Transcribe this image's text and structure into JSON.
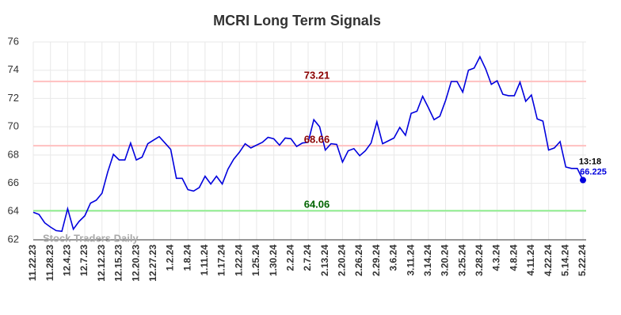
{
  "chart_data": {
    "type": "line",
    "title": "MCRI Long Term Signals",
    "categories": [
      "11.22.23",
      null,
      null,
      "11.28.23",
      null,
      null,
      "12.4.23",
      null,
      null,
      "12.7.23",
      null,
      null,
      "12.12.23",
      null,
      null,
      "12.15.23",
      null,
      null,
      "12.20.23",
      null,
      null,
      "12.27.23",
      null,
      null,
      "1.2.24",
      null,
      null,
      "1.8.24",
      null,
      null,
      "1.11.24",
      null,
      null,
      "1.17.24",
      null,
      null,
      "1.22.24",
      null,
      null,
      "1.25.24",
      null,
      null,
      "1.30.24",
      null,
      null,
      "2.2.24",
      null,
      null,
      "2.7.24",
      null,
      null,
      "2.13.24",
      null,
      null,
      "2.20.24",
      null,
      null,
      "2.26.24",
      null,
      null,
      "2.29.24",
      null,
      null,
      "3.6.24",
      null,
      null,
      "3.11.24",
      null,
      null,
      "3.14.24",
      null,
      null,
      "3.20.24",
      null,
      null,
      "3.25.24",
      null,
      null,
      "3.28.24",
      null,
      null,
      "4.3.24",
      null,
      null,
      "4.8.24",
      null,
      null,
      "4.11.24",
      null,
      null,
      "4.22.24",
      null,
      null,
      "5.14.24",
      null,
      null,
      "5.22.24"
    ],
    "values": [
      63.95,
      63.8,
      63.2,
      62.9,
      62.65,
      62.6,
      64.2,
      62.75,
      63.3,
      63.7,
      64.6,
      64.8,
      65.3,
      66.8,
      68.05,
      67.65,
      67.65,
      68.85,
      67.65,
      67.85,
      68.8,
      69.05,
      69.3,
      68.85,
      68.4,
      66.35,
      66.35,
      65.55,
      65.45,
      65.7,
      66.5,
      65.95,
      66.5,
      65.95,
      67.0,
      67.7,
      68.2,
      68.8,
      68.5,
      68.7,
      68.9,
      69.25,
      69.15,
      68.7,
      69.2,
      69.15,
      68.6,
      68.85,
      68.9,
      70.5,
      70.0,
      68.35,
      68.8,
      68.75,
      67.5,
      68.3,
      68.45,
      67.95,
      68.3,
      68.85,
      70.35,
      68.8,
      69.0,
      69.2,
      69.95,
      69.4,
      70.95,
      71.1,
      72.15,
      71.35,
      70.5,
      70.75,
      71.85,
      73.2,
      73.2,
      72.45,
      74.0,
      74.15,
      74.95,
      74.1,
      73.0,
      73.25,
      72.3,
      72.2,
      72.2,
      73.15,
      71.8,
      72.25,
      70.55,
      70.4,
      68.35,
      68.5,
      68.95,
      67.15,
      67.05,
      67.05,
      66.225
    ],
    "color": "#0000dd",
    "last_time": "13:18",
    "signals": [
      {
        "value": 73.21,
        "color": "#ffc0c0",
        "label_color": "#8b0000"
      },
      {
        "value": 68.66,
        "color": "#ffc0c0",
        "label_color": "#8b0000"
      },
      {
        "value": 64.06,
        "color": "#90ee90",
        "label_color": "#006400"
      }
    ],
    "watermark": "Stock Traders Daily",
    "ylim": [
      62,
      76
    ],
    "yticks": [
      62,
      64,
      66,
      68,
      70,
      72,
      74,
      76
    ],
    "grid": true
  }
}
